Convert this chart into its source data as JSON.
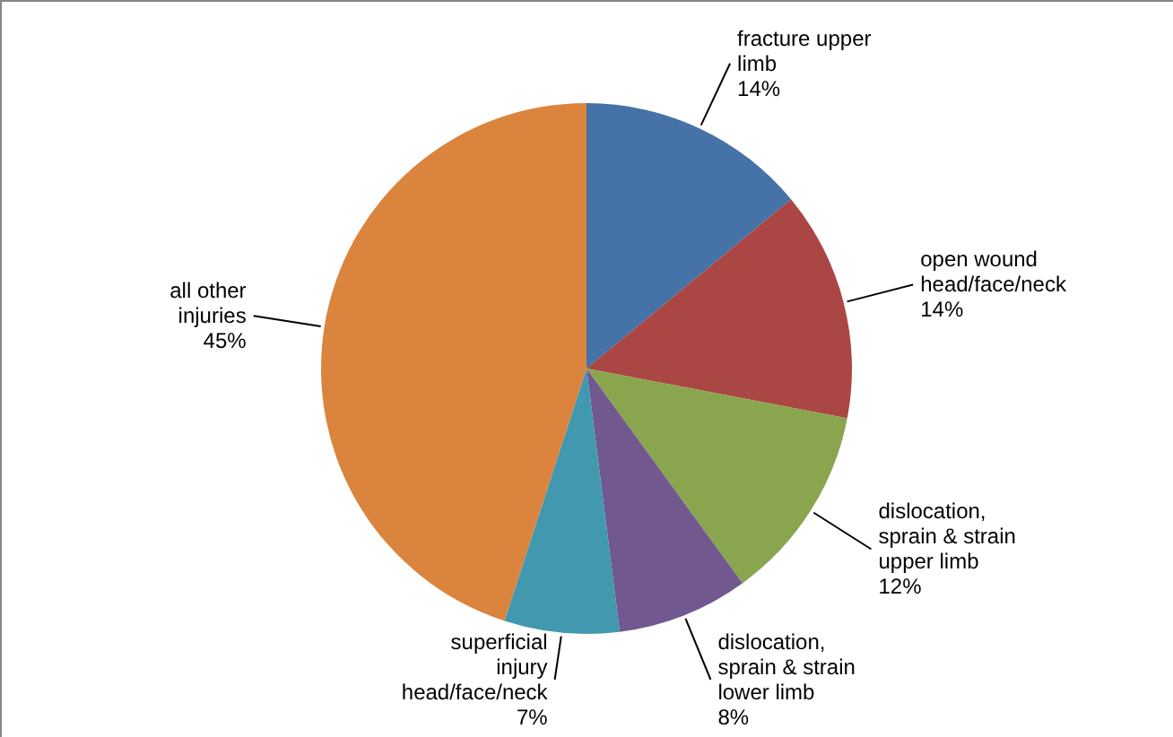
{
  "chart_data": {
    "type": "pie",
    "categories": [
      "fracture upper limb",
      "open wound head/face/neck",
      "dislocation, sprain & strain upper limb",
      "dislocation, sprain & strain lower limb",
      "superficial injury head/face/neck",
      "all other injuries"
    ],
    "values": [
      14,
      14,
      12,
      8,
      7,
      45
    ],
    "value_labels": [
      "14%",
      "14%",
      "12%",
      "8%",
      "7%",
      "45%"
    ],
    "colors": [
      "#4572a7",
      "#aa4643",
      "#89a54e",
      "#71588f",
      "#4198af",
      "#db843d"
    ]
  }
}
